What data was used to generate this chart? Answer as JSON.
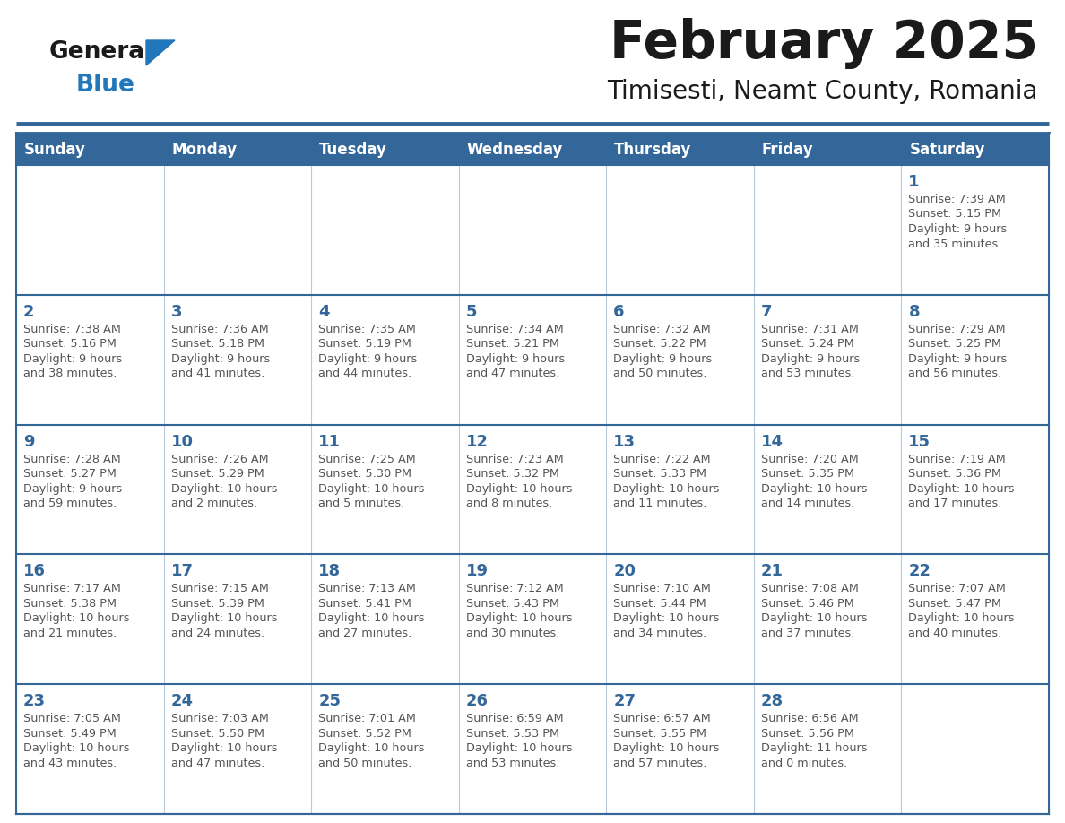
{
  "title": "February 2025",
  "subtitle": "Timisesti, Neamt County, Romania",
  "days_of_week": [
    "Sunday",
    "Monday",
    "Tuesday",
    "Wednesday",
    "Thursday",
    "Friday",
    "Saturday"
  ],
  "header_bg": "#336699",
  "header_text": "#ffffff",
  "cell_bg": "#ffffff",
  "border_color": "#336699",
  "day_num_color": "#336699",
  "text_color": "#555555",
  "title_color": "#1a1a1a",
  "logo_general_color": "#1a1a1a",
  "logo_blue_color": "#2277bb",
  "calendar": [
    [
      null,
      null,
      null,
      null,
      null,
      null,
      {
        "day": 1,
        "sunrise": "7:39 AM",
        "sunset": "5:15 PM",
        "daylight": "9 hours\nand 35 minutes."
      }
    ],
    [
      {
        "day": 2,
        "sunrise": "7:38 AM",
        "sunset": "5:16 PM",
        "daylight": "9 hours\nand 38 minutes."
      },
      {
        "day": 3,
        "sunrise": "7:36 AM",
        "sunset": "5:18 PM",
        "daylight": "9 hours\nand 41 minutes."
      },
      {
        "day": 4,
        "sunrise": "7:35 AM",
        "sunset": "5:19 PM",
        "daylight": "9 hours\nand 44 minutes."
      },
      {
        "day": 5,
        "sunrise": "7:34 AM",
        "sunset": "5:21 PM",
        "daylight": "9 hours\nand 47 minutes."
      },
      {
        "day": 6,
        "sunrise": "7:32 AM",
        "sunset": "5:22 PM",
        "daylight": "9 hours\nand 50 minutes."
      },
      {
        "day": 7,
        "sunrise": "7:31 AM",
        "sunset": "5:24 PM",
        "daylight": "9 hours\nand 53 minutes."
      },
      {
        "day": 8,
        "sunrise": "7:29 AM",
        "sunset": "5:25 PM",
        "daylight": "9 hours\nand 56 minutes."
      }
    ],
    [
      {
        "day": 9,
        "sunrise": "7:28 AM",
        "sunset": "5:27 PM",
        "daylight": "9 hours\nand 59 minutes."
      },
      {
        "day": 10,
        "sunrise": "7:26 AM",
        "sunset": "5:29 PM",
        "daylight": "10 hours\nand 2 minutes."
      },
      {
        "day": 11,
        "sunrise": "7:25 AM",
        "sunset": "5:30 PM",
        "daylight": "10 hours\nand 5 minutes."
      },
      {
        "day": 12,
        "sunrise": "7:23 AM",
        "sunset": "5:32 PM",
        "daylight": "10 hours\nand 8 minutes."
      },
      {
        "day": 13,
        "sunrise": "7:22 AM",
        "sunset": "5:33 PM",
        "daylight": "10 hours\nand 11 minutes."
      },
      {
        "day": 14,
        "sunrise": "7:20 AM",
        "sunset": "5:35 PM",
        "daylight": "10 hours\nand 14 minutes."
      },
      {
        "day": 15,
        "sunrise": "7:19 AM",
        "sunset": "5:36 PM",
        "daylight": "10 hours\nand 17 minutes."
      }
    ],
    [
      {
        "day": 16,
        "sunrise": "7:17 AM",
        "sunset": "5:38 PM",
        "daylight": "10 hours\nand 21 minutes."
      },
      {
        "day": 17,
        "sunrise": "7:15 AM",
        "sunset": "5:39 PM",
        "daylight": "10 hours\nand 24 minutes."
      },
      {
        "day": 18,
        "sunrise": "7:13 AM",
        "sunset": "5:41 PM",
        "daylight": "10 hours\nand 27 minutes."
      },
      {
        "day": 19,
        "sunrise": "7:12 AM",
        "sunset": "5:43 PM",
        "daylight": "10 hours\nand 30 minutes."
      },
      {
        "day": 20,
        "sunrise": "7:10 AM",
        "sunset": "5:44 PM",
        "daylight": "10 hours\nand 34 minutes."
      },
      {
        "day": 21,
        "sunrise": "7:08 AM",
        "sunset": "5:46 PM",
        "daylight": "10 hours\nand 37 minutes."
      },
      {
        "day": 22,
        "sunrise": "7:07 AM",
        "sunset": "5:47 PM",
        "daylight": "10 hours\nand 40 minutes."
      }
    ],
    [
      {
        "day": 23,
        "sunrise": "7:05 AM",
        "sunset": "5:49 PM",
        "daylight": "10 hours\nand 43 minutes."
      },
      {
        "day": 24,
        "sunrise": "7:03 AM",
        "sunset": "5:50 PM",
        "daylight": "10 hours\nand 47 minutes."
      },
      {
        "day": 25,
        "sunrise": "7:01 AM",
        "sunset": "5:52 PM",
        "daylight": "10 hours\nand 50 minutes."
      },
      {
        "day": 26,
        "sunrise": "6:59 AM",
        "sunset": "5:53 PM",
        "daylight": "10 hours\nand 53 minutes."
      },
      {
        "day": 27,
        "sunrise": "6:57 AM",
        "sunset": "5:55 PM",
        "daylight": "10 hours\nand 57 minutes."
      },
      {
        "day": 28,
        "sunrise": "6:56 AM",
        "sunset": "5:56 PM",
        "daylight": "11 hours\nand 0 minutes."
      },
      null
    ]
  ],
  "fig_width": 11.88,
  "fig_height": 9.18,
  "dpi": 100
}
